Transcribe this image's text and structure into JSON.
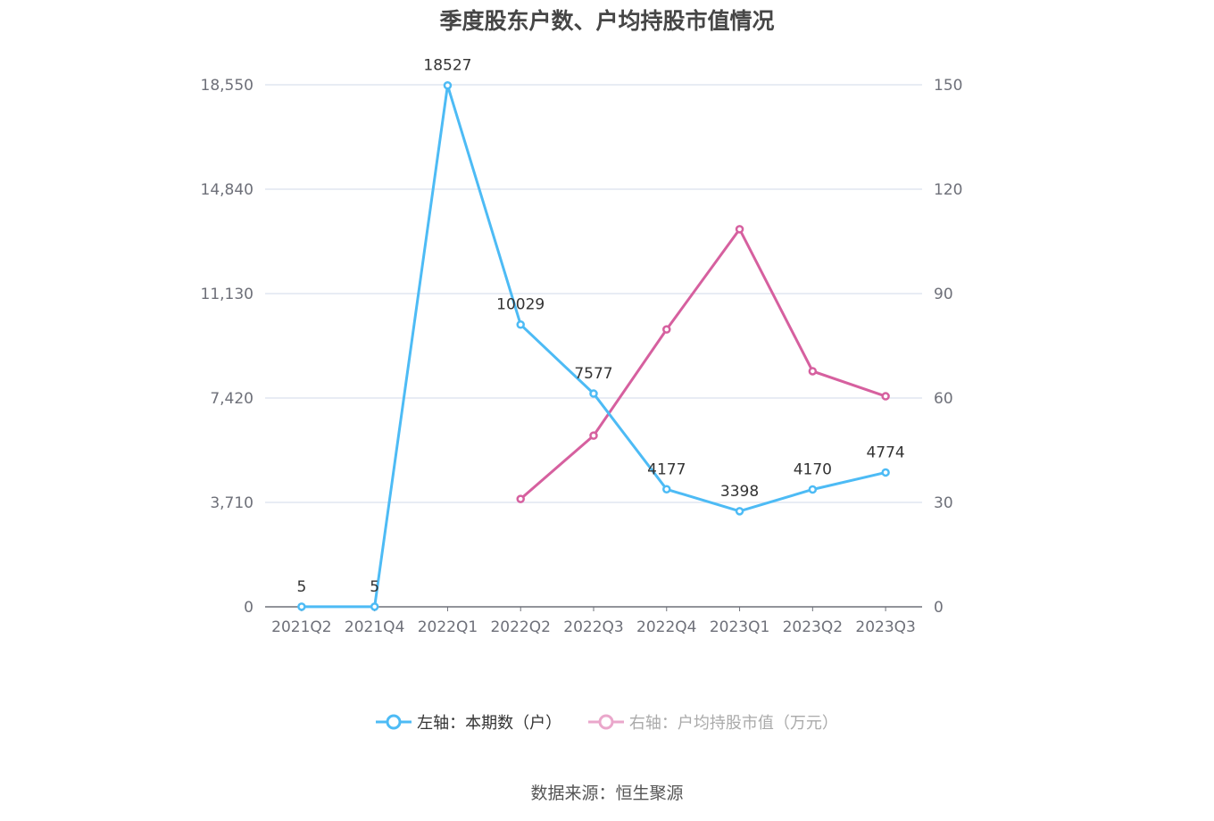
{
  "chart_data": {
    "type": "line",
    "title": "季度股东户数、户均持股市值情况",
    "categories": [
      "2021Q2",
      "2021Q4",
      "2022Q1",
      "2022Q2",
      "2022Q3",
      "2022Q4",
      "2023Q1",
      "2023Q2",
      "2023Q3"
    ],
    "left_axis": {
      "ylim": [
        0,
        18550
      ],
      "ticks": [
        "0",
        "3,710",
        "7,420",
        "11,130",
        "14,840",
        "18,550"
      ]
    },
    "right_axis": {
      "ylim": [
        0,
        150
      ],
      "ticks": [
        "0",
        "30",
        "60",
        "90",
        "120",
        "150"
      ]
    },
    "grid": true,
    "legend_position": "bottom",
    "series": [
      {
        "name": "左轴：本期数（户）",
        "axis": "left",
        "color": "#4dbbf5",
        "values": [
          5,
          5,
          18527,
          10029,
          7577,
          4177,
          3398,
          4170,
          4774
        ],
        "labels": [
          "5",
          "5",
          "18527",
          "10029",
          "7577",
          "4177",
          "3398",
          "4170",
          "4774"
        ]
      },
      {
        "name": "右轴：户均持股市值（万元）",
        "axis": "right",
        "color": "#d6609f",
        "values": [
          null,
          null,
          null,
          31.0,
          49.2,
          79.7,
          108.5,
          67.7,
          60.5
        ]
      }
    ]
  },
  "source": "数据来源：恒生聚源"
}
